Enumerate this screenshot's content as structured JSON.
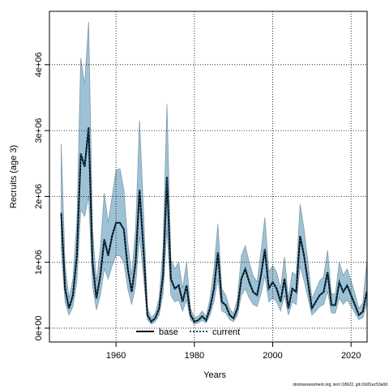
{
  "chart_data": {
    "type": "line",
    "x_label": "Years",
    "y_label": "Recruits (age 3)",
    "footer": "stockassessment.org, test r18622, git:c9c81ec53a0d",
    "xlim": [
      1943,
      2024.1
    ],
    "xticks": [
      1960,
      1980,
      2000,
      2020
    ],
    "ylim": [
      -210000,
      4810000
    ],
    "yticks": [
      {
        "value": 0,
        "label": "0e+00"
      },
      {
        "value": 1000000,
        "label": "1e+06"
      },
      {
        "value": 2000000,
        "label": "2e+06"
      },
      {
        "value": 3000000,
        "label": "3e+06"
      },
      {
        "value": 4000000,
        "label": "4e+06"
      }
    ],
    "grid": true,
    "legend": "bottom",
    "x": [
      1946,
      1947,
      1948,
      1949,
      1950,
      1951,
      1952,
      1953,
      1954,
      1955,
      1956,
      1957,
      1958,
      1959,
      1960,
      1961,
      1962,
      1963,
      1964,
      1965,
      1966,
      1967,
      1968,
      1969,
      1970,
      1971,
      1972,
      1973,
      1974,
      1975,
      1976,
      1977,
      1978,
      1979,
      1980,
      1981,
      1982,
      1983,
      1984,
      1985,
      1986,
      1987,
      1988,
      1989,
      1990,
      1991,
      1992,
      1993,
      1994,
      1995,
      1996,
      1997,
      1998,
      1999,
      2000,
      2001,
      2002,
      2003,
      2004,
      2005,
      2006,
      2007,
      2008,
      2009,
      2010,
      2011,
      2012,
      2013,
      2014,
      2015,
      2016,
      2017,
      2018,
      2019,
      2020,
      2021,
      2022,
      2023,
      2024
    ],
    "band": {
      "color": "#9ec2d5",
      "upper": [
        2800000.0,
        950000.0,
        450000.0,
        750000.0,
        1600000.0,
        4100000.0,
        3700000.0,
        4650000.0,
        1500000.0,
        700000.0,
        1200000.0,
        2050000.0,
        1600000.0,
        2000000.0,
        2400000.0,
        2420000.0,
        2100000.0,
        1300000.0,
        800000.0,
        1500000.0,
        3150000.0,
        1800000.0,
        300000.0,
        160000.0,
        220000.0,
        450000.0,
        1200000.0,
        3400000.0,
        1050000.0,
        900000.0,
        1000000.0,
        600000.0,
        1000000.0,
        300000.0,
        160000.0,
        180000.0,
        260000.0,
        180000.0,
        450000.0,
        900000.0,
        1580000.0,
        600000.0,
        500000.0,
        300000.0,
        220000.0,
        450000.0,
        1100000.0,
        1250000.0,
        1000000.0,
        800000.0,
        700000.0,
        1150000.0,
        1680000.0,
        850000.0,
        950000.0,
        850000.0,
        600000.0,
        1080000.0,
        450000.0,
        850000.0,
        800000.0,
        1880000.0,
        1500000.0,
        1000000.0,
        450000.0,
        580000.0,
        720000.0,
        780000.0,
        1180000.0,
        520000.0,
        520000.0,
        1000000.0,
        800000.0,
        900000.0,
        720000.0,
        520000.0,
        300000.0,
        380000.0,
        1000000.0
      ],
      "lower": [
        1200000.0,
        400000.0,
        200000.0,
        330000.0,
        700000.0,
        1800000.0,
        1700000.0,
        2000000.0,
        650000.0,
        280000.0,
        500000.0,
        900000.0,
        750000.0,
        950000.0,
        1100000.0,
        1100000.0,
        1000000.0,
        600000.0,
        360000.0,
        650000.0,
        1400000.0,
        800000.0,
        130000.0,
        60000.0,
        100000.0,
        200000.0,
        520000.0,
        1500000.0,
        500000.0,
        400000.0,
        430000.0,
        260000.0,
        430000.0,
        130000.0,
        60000.0,
        80000.0,
        120000.0,
        80000.0,
        200000.0,
        400000.0,
        750000.0,
        260000.0,
        230000.0,
        130000.0,
        100000.0,
        200000.0,
        500000.0,
        600000.0,
        460000.0,
        360000.0,
        330000.0,
        520000.0,
        800000.0,
        400000.0,
        460000.0,
        400000.0,
        260000.0,
        500000.0,
        200000.0,
        400000.0,
        360000.0,
        950000.0,
        720000.0,
        460000.0,
        200000.0,
        260000.0,
        330000.0,
        360000.0,
        560000.0,
        230000.0,
        230000.0,
        460000.0,
        360000.0,
        430000.0,
        330000.0,
        230000.0,
        130000.0,
        160000.0,
        360000.0
      ]
    },
    "series": [
      {
        "name": "base",
        "color": "#000000",
        "dash": false,
        "values": [
          1750000.0,
          600000.0,
          300000.0,
          500000.0,
          1100000.0,
          2650000.0,
          2450000.0,
          3050000.0,
          1000000.0,
          450000.0,
          800000.0,
          1350000.0,
          1100000.0,
          1400000.0,
          1600000.0,
          1600000.0,
          1500000.0,
          900000.0,
          550000.0,
          1000000.0,
          2100000.0,
          1200000.0,
          200000.0,
          100000.0,
          150000.0,
          300000.0,
          800000.0,
          2300000.0,
          750000.0,
          600000.0,
          650000.0,
          400000.0,
          650000.0,
          200000.0,
          100000.0,
          120000.0,
          180000.0,
          120000.0,
          300000.0,
          600000.0,
          1150000.0,
          400000.0,
          350000.0,
          200000.0,
          150000.0,
          300000.0,
          750000.0,
          900000.0,
          700000.0,
          550000.0,
          500000.0,
          800000.0,
          1200000.0,
          600000.0,
          700000.0,
          600000.0,
          400000.0,
          750000.0,
          300000.0,
          600000.0,
          550000.0,
          1400000.0,
          1100000.0,
          700000.0,
          300000.0,
          400000.0,
          500000.0,
          550000.0,
          850000.0,
          350000.0,
          350000.0,
          700000.0,
          550000.0,
          650000.0,
          500000.0,
          350000.0,
          200000.0,
          250000.0,
          550000.0
        ]
      },
      {
        "name": "current",
        "color": "#1a4a66",
        "dash": true,
        "values": [
          1750000.0,
          600000.0,
          300000.0,
          500000.0,
          1100000.0,
          2650000.0,
          2450000.0,
          3050000.0,
          1000000.0,
          450000.0,
          800000.0,
          1350000.0,
          1100000.0,
          1400000.0,
          1600000.0,
          1600000.0,
          1500000.0,
          900000.0,
          550000.0,
          1000000.0,
          2100000.0,
          1200000.0,
          200000.0,
          100000.0,
          150000.0,
          300000.0,
          800000.0,
          2300000.0,
          750000.0,
          600000.0,
          650000.0,
          400000.0,
          650000.0,
          200000.0,
          100000.0,
          120000.0,
          180000.0,
          120000.0,
          300000.0,
          600000.0,
          1150000.0,
          400000.0,
          350000.0,
          200000.0,
          150000.0,
          300000.0,
          750000.0,
          900000.0,
          700000.0,
          550000.0,
          500000.0,
          800000.0,
          1200000.0,
          600000.0,
          700000.0,
          600000.0,
          400000.0,
          750000.0,
          300000.0,
          600000.0,
          550000.0,
          1400000.0,
          1100000.0,
          700000.0,
          300000.0,
          400000.0,
          500000.0,
          550000.0,
          850000.0,
          350000.0,
          350000.0,
          700000.0,
          550000.0,
          650000.0,
          500000.0,
          350000.0,
          200000.0,
          250000.0,
          550000.0
        ]
      }
    ]
  }
}
